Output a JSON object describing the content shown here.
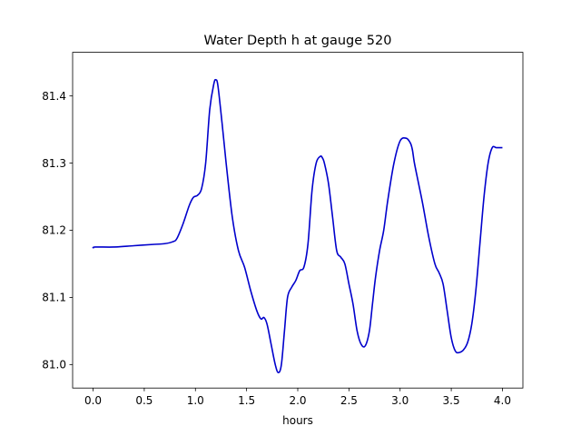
{
  "chart_data": {
    "type": "line",
    "title": "Water Depth h at gauge 520",
    "xlabel": "hours",
    "ylabel": "",
    "xlim": [
      -0.2,
      4.2
    ],
    "ylim": [
      80.965,
      81.465
    ],
    "xticks": [
      0.0,
      0.5,
      1.0,
      1.5,
      2.0,
      2.5,
      3.0,
      3.5,
      4.0
    ],
    "xtick_labels": [
      "0.0",
      "0.5",
      "1.0",
      "1.5",
      "2.0",
      "2.5",
      "3.0",
      "3.5",
      "4.0"
    ],
    "yticks": [
      81.0,
      81.1,
      81.2,
      81.3,
      81.4
    ],
    "ytick_labels": [
      "81.0",
      "81.1",
      "81.2",
      "81.3",
      "81.4"
    ],
    "grid": false,
    "legend": "none",
    "line_color": "#0000cc",
    "series": [
      {
        "x": [
          0.0,
          0.02,
          0.2,
          0.4,
          0.6,
          0.7,
          0.78,
          0.82,
          0.88,
          0.94,
          0.98,
          1.02,
          1.06,
          1.1,
          1.14,
          1.18,
          1.2,
          1.22,
          1.26,
          1.3,
          1.36,
          1.42,
          1.48,
          1.54,
          1.6,
          1.64,
          1.67,
          1.7,
          1.74,
          1.78,
          1.81,
          1.84,
          1.87,
          1.9,
          1.94,
          1.98,
          2.02,
          2.06,
          2.1,
          2.14,
          2.18,
          2.22,
          2.24,
          2.26,
          2.3,
          2.34,
          2.38,
          2.42,
          2.46,
          2.5,
          2.54,
          2.58,
          2.62,
          2.66,
          2.7,
          2.73,
          2.76,
          2.8,
          2.84,
          2.88,
          2.94,
          3.0,
          3.06,
          3.1,
          3.12,
          3.14,
          3.18,
          3.22,
          3.28,
          3.34,
          3.38,
          3.42,
          3.46,
          3.5,
          3.54,
          3.58,
          3.62,
          3.66,
          3.7,
          3.74,
          3.78,
          3.82,
          3.86,
          3.9,
          3.94,
          3.98,
          4.0
        ],
        "y": [
          81.173,
          81.175,
          81.175,
          81.177,
          81.179,
          81.18,
          81.183,
          81.188,
          81.21,
          81.237,
          81.249,
          81.252,
          81.262,
          81.3,
          81.38,
          81.418,
          81.424,
          81.415,
          81.36,
          81.3,
          81.22,
          81.17,
          81.145,
          81.11,
          81.08,
          81.068,
          81.07,
          81.06,
          81.03,
          81.0,
          80.988,
          81.0,
          81.05,
          81.1,
          81.115,
          81.125,
          81.14,
          81.145,
          81.18,
          81.26,
          81.3,
          81.31,
          81.308,
          81.3,
          81.27,
          81.22,
          81.17,
          81.16,
          81.15,
          81.12,
          81.09,
          81.05,
          81.03,
          81.028,
          81.05,
          81.09,
          81.13,
          81.17,
          81.2,
          81.245,
          81.3,
          81.333,
          81.337,
          81.33,
          81.32,
          81.3,
          81.27,
          81.24,
          81.19,
          81.15,
          81.137,
          81.12,
          81.08,
          81.04,
          81.02,
          81.018,
          81.022,
          81.033,
          81.06,
          81.11,
          81.18,
          81.25,
          81.3,
          81.323,
          81.323,
          81.323,
          81.323
        ]
      }
    ]
  }
}
